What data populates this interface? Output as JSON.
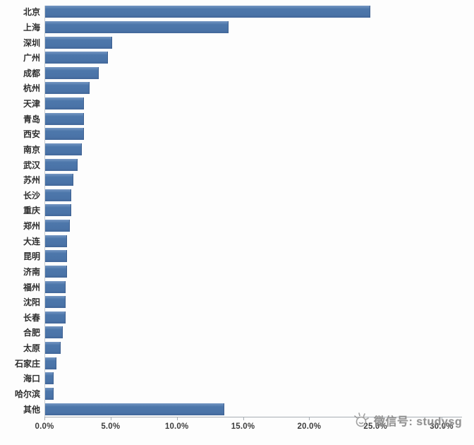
{
  "chart_data": {
    "type": "bar",
    "orientation": "horizontal",
    "title": "",
    "xlabel": "",
    "ylabel": "",
    "categories": [
      "北京",
      "上海",
      "深圳",
      "广州",
      "成都",
      "杭州",
      "天津",
      "青岛",
      "西安",
      "南京",
      "武汉",
      "苏州",
      "长沙",
      "重庆",
      "郑州",
      "大连",
      "昆明",
      "济南",
      "福州",
      "沈阳",
      "长春",
      "合肥",
      "太原",
      "石家庄",
      "海口",
      "哈尔滨",
      "其他"
    ],
    "values": [
      24.5,
      13.8,
      5.0,
      4.7,
      4.0,
      3.3,
      2.9,
      2.9,
      2.9,
      2.7,
      2.4,
      2.1,
      1.9,
      1.9,
      1.8,
      1.6,
      1.6,
      1.6,
      1.5,
      1.5,
      1.5,
      1.3,
      1.1,
      0.8,
      0.6,
      0.6,
      13.5
    ],
    "value_unit": "%",
    "xlim": [
      0,
      30
    ],
    "x_ticks": [
      "0.0%",
      "5.0%",
      "10.0%",
      "15.0%",
      "20.0%",
      "25.0%",
      "30.0%"
    ],
    "x_tick_values": [
      0,
      5,
      10,
      15,
      20,
      25,
      30
    ],
    "grid": "off",
    "legend": "none",
    "bar_color": "#4d77ab"
  },
  "watermark": {
    "icon": "sun-doodle-icon",
    "label": "微信号: studysg",
    "color": "#8b8b8b"
  }
}
